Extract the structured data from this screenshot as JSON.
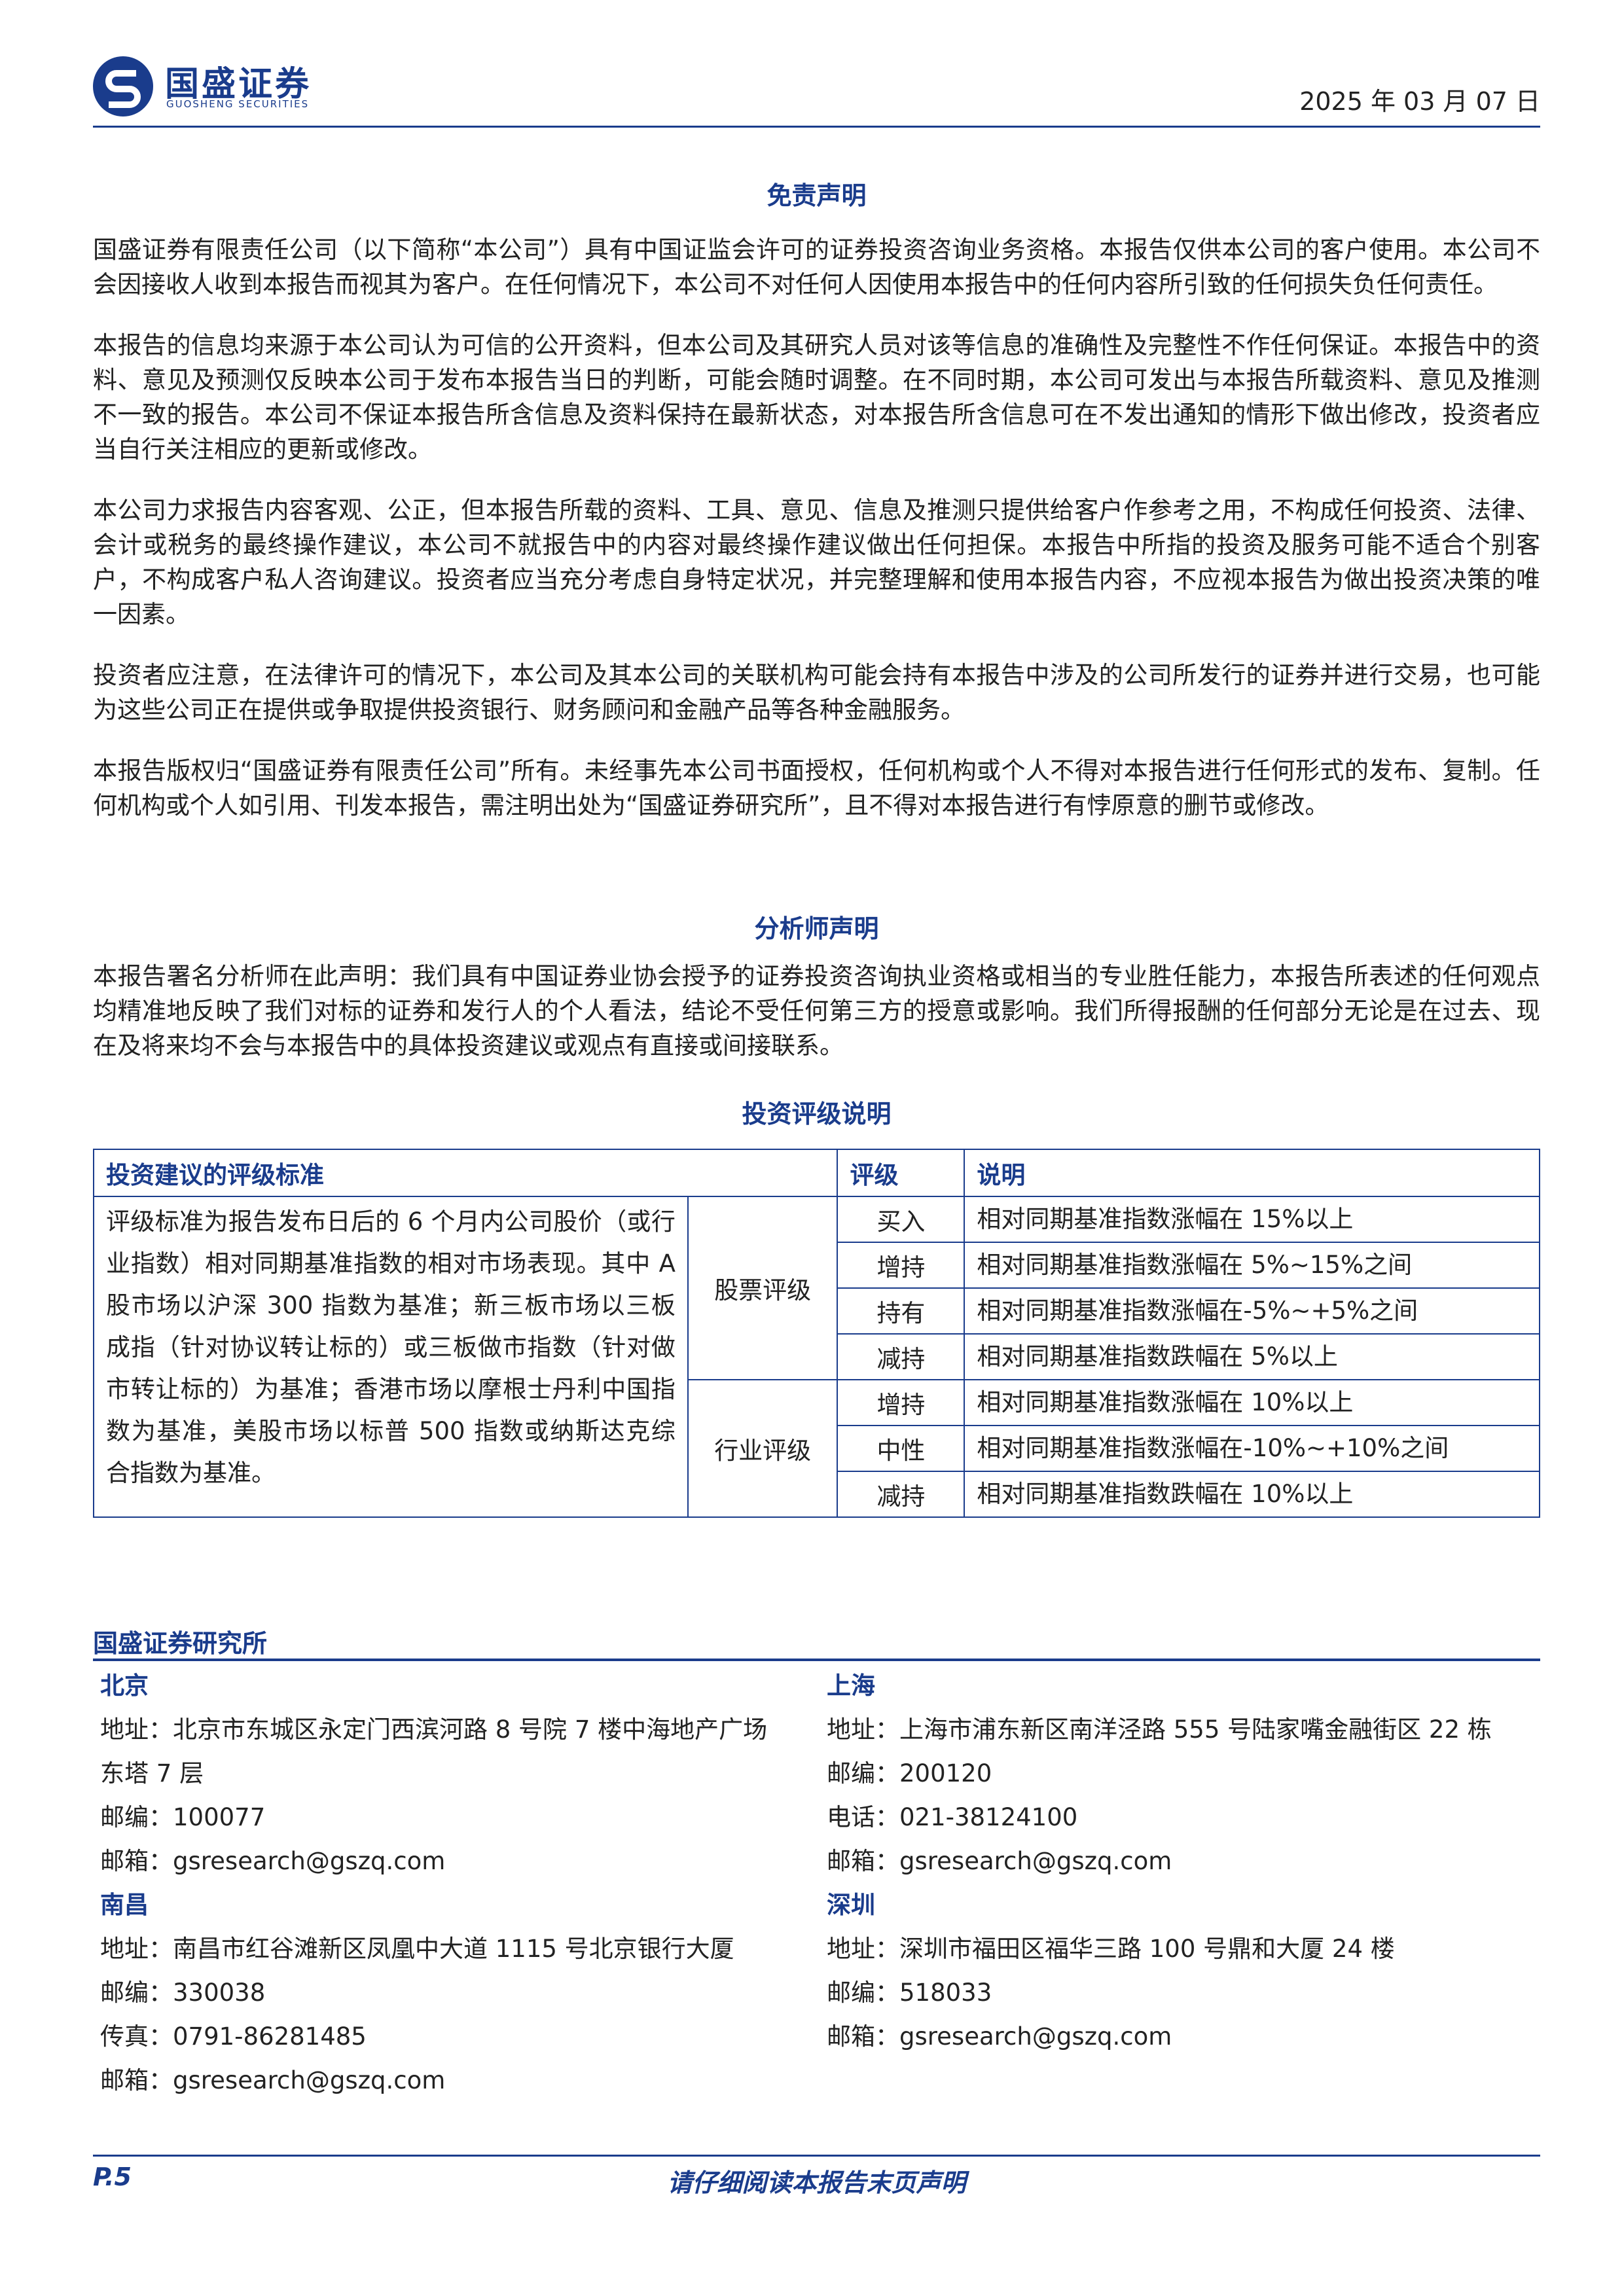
{
  "header": {
    "logo_cn": "国盛证券",
    "logo_en": "GUOSHENG SECURITIES",
    "date": "2025 年 03 月 07 日"
  },
  "disclaimer": {
    "title": "免责声明",
    "paragraphs": [
      "国盛证券有限责任公司（以下简称“本公司”）具有中国证监会许可的证券投资咨询业务资格。本报告仅供本公司的客户使用。本公司不会因接收人收到本报告而视其为客户。在任何情况下，本公司不对任何人因使用本报告中的任何内容所引致的任何损失负任何责任。",
      "本报告的信息均来源于本公司认为可信的公开资料，但本公司及其研究人员对该等信息的准确性及完整性不作任何保证。本报告中的资料、意见及预测仅反映本公司于发布本报告当日的判断，可能会随时调整。在不同时期，本公司可发出与本报告所载资料、意见及推测不一致的报告。本公司不保证本报告所含信息及资料保持在最新状态，对本报告所含信息可在不发出通知的情形下做出修改，投资者应当自行关注相应的更新或修改。",
      "本公司力求报告内容客观、公正，但本报告所载的资料、工具、意见、信息及推测只提供给客户作参考之用，不构成任何投资、法律、会计或税务的最终操作建议，本公司不就报告中的内容对最终操作建议做出任何担保。本报告中所指的投资及服务可能不适合个别客户，不构成客户私人咨询建议。投资者应当充分考虑自身特定状况，并完整理解和使用本报告内容，不应视本报告为做出投资决策的唯一因素。",
      "投资者应注意，在法律许可的情况下，本公司及其本公司的关联机构可能会持有本报告中涉及的公司所发行的证券并进行交易，也可能为这些公司正在提供或争取提供投资银行、财务顾问和金融产品等各种金融服务。",
      "本报告版权归“国盛证券有限责任公司”所有。未经事先本公司书面授权，任何机构或个人不得对本报告进行任何形式的发布、复制。任何机构或个人如引用、刊发本报告，需注明出处为“国盛证券研究所”，且不得对本报告进行有悖原意的删节或修改。"
    ]
  },
  "analyst": {
    "title": "分析师声明",
    "paragraph": "本报告署名分析师在此声明：我们具有中国证券业协会授予的证券投资咨询执业资格或相当的专业胜任能力，本报告所表述的任何观点均精准地反映了我们对标的证券和发行人的个人看法，结论不受任何第三方的授意或影响。我们所得报酬的任何部分无论是在过去、现在及将来均不会与本报告中的具体投资建议或观点有直接或间接联系。"
  },
  "rating": {
    "title": "投资评级说明",
    "headers": [
      "投资建议的评级标准",
      "评级",
      "说明"
    ],
    "criteria": "评级标准为报告发布日后的 6 个月内公司股价（或行业指数）相对同期基准指数的相对市场表现。其中 A 股市场以沪深 300 指数为基准；新三板市场以三板成指（针对协议转让标的）或三板做市指数（针对做市转让标的）为基准；香港市场以摩根士丹利中国指数为基准，美股市场以标普 500 指数或纳斯达克综合指数为基准。",
    "groups": [
      {
        "name": "股票评级",
        "rows": [
          [
            "买入",
            "相对同期基准指数涨幅在 15%以上"
          ],
          [
            "增持",
            "相对同期基准指数涨幅在 5%~15%之间"
          ],
          [
            "持有",
            "相对同期基准指数涨幅在-5%~+5%之间"
          ],
          [
            "减持",
            "相对同期基准指数跌幅在 5%以上"
          ]
        ]
      },
      {
        "name": "行业评级",
        "rows": [
          [
            "增持",
            "相对同期基准指数涨幅在 10%以上"
          ],
          [
            "中性",
            "相对同期基准指数涨幅在-10%~+10%之间"
          ],
          [
            "减持",
            "相对同期基准指数跌幅在 10%以上"
          ]
        ]
      }
    ]
  },
  "research": {
    "title": "国盛证券研究所",
    "offices": [
      {
        "city": "北京",
        "lines": [
          "地址：北京市东城区永定门西滨河路 8 号院 7 楼中海地产广场东塔 7 层",
          "邮编：100077",
          "邮箱：gsresearch@gszq.com"
        ]
      },
      {
        "city": "上海",
        "lines": [
          "地址：上海市浦东新区南洋泾路 555 号陆家嘴金融街区 22 栋",
          "邮编：200120",
          "电话：021-38124100",
          "邮箱：gsresearch@gszq.com"
        ]
      },
      {
        "city": "南昌",
        "lines": [
          "地址：南昌市红谷滩新区凤凰中大道 1115 号北京银行大厦",
          "邮编：330038",
          "传真：0791-86281485",
          "邮箱：gsresearch@gszq.com"
        ]
      },
      {
        "city": "深圳",
        "lines": [
          "地址：深圳市福田区福华三路 100 号鼎和大厦 24 楼",
          "邮编：518033",
          "邮箱：gsresearch@gszq.com"
        ]
      }
    ]
  },
  "footer": {
    "page": "P.5",
    "notice": "请仔细阅读本报告末页声明"
  }
}
